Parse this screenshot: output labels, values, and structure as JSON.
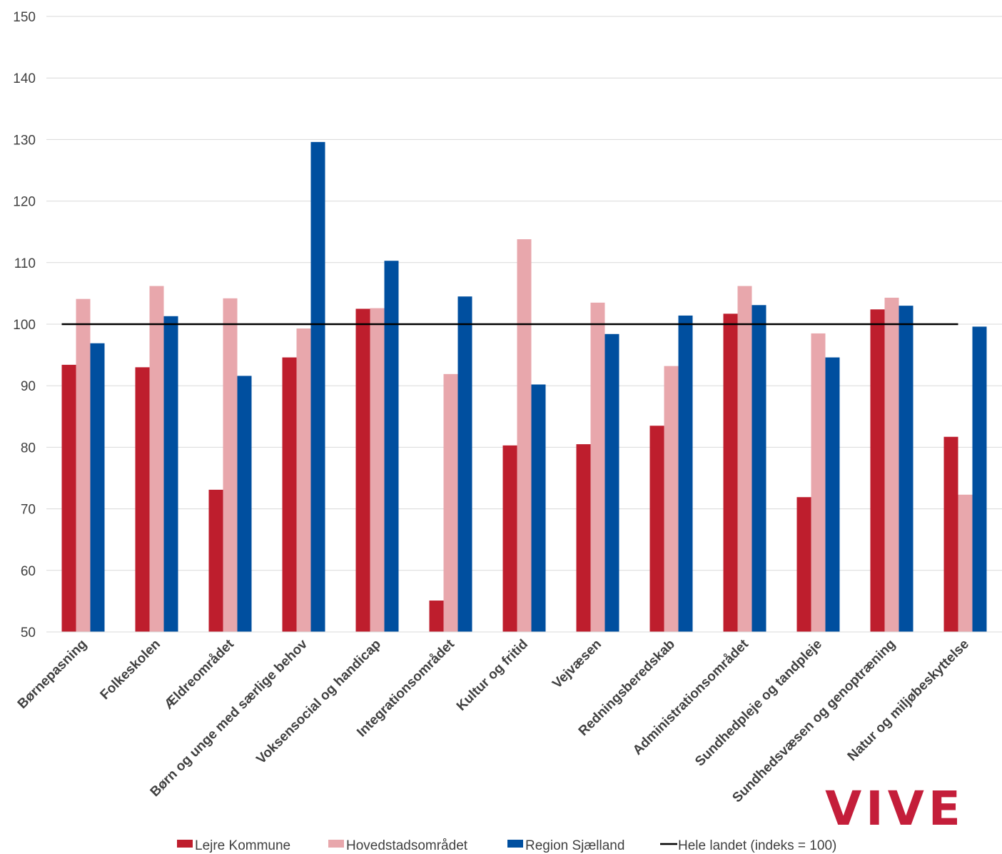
{
  "chart_data": {
    "type": "bar",
    "title": "",
    "xlabel": "",
    "ylabel": "",
    "ylim": [
      50,
      150
    ],
    "yticks": [
      50,
      60,
      70,
      80,
      90,
      100,
      110,
      120,
      130,
      140,
      150
    ],
    "grid": true,
    "legend_position": "bottom",
    "categories": [
      "Børnepasning",
      "Folkeskolen",
      "Ældreområdet",
      "Børn og unge med særlige behov",
      "Voksensocial og handicap",
      "Integrationsområdet",
      "Kultur og fritid",
      "Vejvæsen",
      "Redningsberedskab",
      "Administrationsområdet",
      "Sundhedpleje og tandpleje",
      "Sundhedsvæsen og genoptræning",
      "Natur og miljøbeskyttelse"
    ],
    "series": [
      {
        "name": "Lejre Kommune",
        "color": "#be1e2d",
        "values": [
          93.4,
          93.0,
          73.1,
          94.6,
          102.5,
          55.1,
          80.3,
          80.5,
          83.5,
          101.7,
          71.9,
          102.4,
          81.7
        ]
      },
      {
        "name": "Hovedstadsområdet",
        "color": "#e8a7ac",
        "values": [
          104.1,
          106.2,
          104.2,
          99.3,
          102.6,
          91.9,
          113.8,
          103.5,
          93.2,
          106.2,
          98.5,
          104.3,
          72.3
        ]
      },
      {
        "name": "Region Sjælland",
        "color": "#004f9f",
        "values": [
          96.9,
          101.3,
          91.6,
          129.6,
          110.3,
          104.5,
          90.2,
          98.4,
          101.4,
          103.1,
          94.6,
          103.0,
          99.6
        ]
      }
    ],
    "reference_line": {
      "name": "Hele landet (indeks = 100)",
      "value": 100,
      "color": "#000000"
    }
  },
  "logo": {
    "text": "VIVE",
    "color": "#c41e3a"
  }
}
